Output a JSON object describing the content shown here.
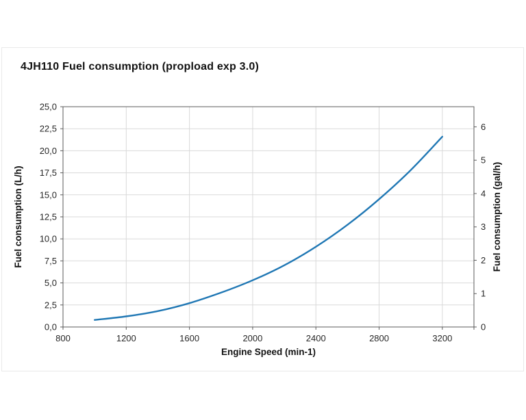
{
  "window": {
    "background": "#ffffff",
    "card_border": "#e9e9e9"
  },
  "chart_data": {
    "type": "line",
    "title": "4JH110 Fuel consumption (propload exp 3.0)",
    "xlabel": "Engine Speed (min-1)",
    "ylabel_left": "Fuel consumption (L/h)",
    "ylabel_right": "Fuel consumption (gal/h)",
    "x_axis": {
      "min": 800,
      "max": 3400,
      "ticks": [
        800,
        1200,
        1600,
        2000,
        2400,
        2800,
        3200
      ],
      "tick_labels": [
        "800",
        "1200",
        "1600",
        "2000",
        "2400",
        "2800",
        "3200"
      ]
    },
    "y_axis_left": {
      "min": 0,
      "max": 25,
      "ticks": [
        0,
        2.5,
        5,
        7.5,
        10,
        12.5,
        15,
        17.5,
        20,
        22.5,
        25
      ],
      "tick_labels": [
        "0,0",
        "2,5",
        "5,0",
        "7,5",
        "10,0",
        "12,5",
        "15,0",
        "17,5",
        "20,0",
        "22,5",
        "25,0"
      ]
    },
    "y_axis_right": {
      "min": 0,
      "max": 6.604,
      "ticks": [
        0,
        1,
        2,
        3,
        4,
        5,
        6
      ],
      "tick_labels": [
        "0",
        "1",
        "2",
        "3",
        "4",
        "5",
        "6"
      ]
    },
    "grid": true,
    "legend": "none",
    "series": [
      {
        "name": "Fuel consumption (propload exp 3.0)",
        "color": "#1F77B4",
        "x": [
          1000,
          1200,
          1400,
          1600,
          1800,
          2000,
          2200,
          2400,
          2600,
          2800,
          3000,
          3200
        ],
        "y": [
          0.8,
          1.2,
          1.8,
          2.7,
          3.9,
          5.3,
          7.0,
          9.1,
          11.6,
          14.5,
          17.8,
          21.6
        ]
      }
    ],
    "colors": {
      "gridline": "#d9d9d9",
      "axis": "#595959",
      "tick_text": "#262626",
      "title_text": "#111111"
    }
  }
}
